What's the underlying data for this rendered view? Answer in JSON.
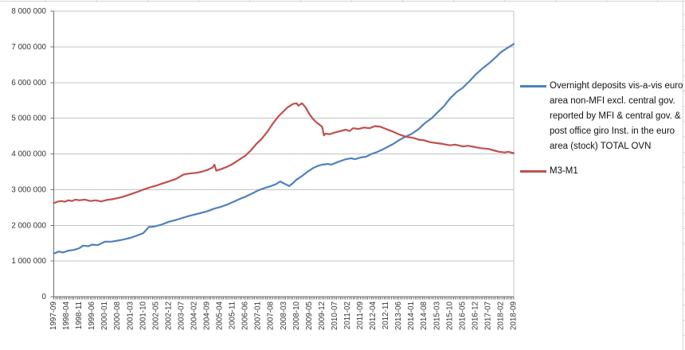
{
  "sheet": {
    "background_color": "#ffffff",
    "gridline_color": "#d4d4d4"
  },
  "chart": {
    "title": "",
    "colors": {
      "series_blue": "#4F81BD",
      "series_red": "#C0504D",
      "gridline": "#c3c3c3",
      "axis": "#6f6f6f",
      "tick_label": "#353535"
    },
    "y_axis": {
      "min": 0,
      "max": 8000000,
      "step": 1000000,
      "tick_labels": [
        "0",
        "1 000 000",
        "2 000 000",
        "3 000 000",
        "4 000 000",
        "5 000 000",
        "6 000 000",
        "7 000 000",
        "8 000 000"
      ]
    },
    "x_axis": {
      "start": "1997-09",
      "end": "2018-09",
      "label_every_months": 7,
      "tick_labels": [
        "1997-09",
        "1998-04",
        "1998-11",
        "1999-06",
        "2000-01",
        "2000-08",
        "2001-03",
        "2001-10",
        "2002-05",
        "2002-12",
        "2003-07",
        "2004-02",
        "2004-09",
        "2005-04",
        "2005-11",
        "2006-06",
        "2007-01",
        "2007-08",
        "2008-03",
        "2008-10",
        "2009-05",
        "2009-12",
        "2010-07",
        "2011-02",
        "2011-09",
        "2012-04",
        "2012-11",
        "2013-06",
        "2014-01",
        "2014-08",
        "2015-03",
        "2015-10",
        "2016-05",
        "2016-12",
        "2017-07",
        "2018-02",
        "2018-09"
      ]
    },
    "legend": {
      "position": "right",
      "entries": [
        {
          "id": "ovn",
          "color": "#4F81BD",
          "label_lines": [
            "Overnight deposits vis-a-vis euro",
            "area non-MFI excl. central gov.",
            "reported by MFI & central gov. &",
            "post office giro Inst.  in the euro",
            "area (stock) TOTAL OVN"
          ]
        },
        {
          "id": "m3m1",
          "color": "#C0504D",
          "label_lines": [
            "M3-M1"
          ]
        }
      ]
    }
  },
  "chart_data": {
    "type": "line",
    "title": "",
    "xlabel": "",
    "ylabel": "",
    "ylim": [
      0,
      8000000
    ],
    "x_range": [
      "1997-09",
      "2018-09"
    ],
    "x_unit": "month",
    "grid": "horizontal",
    "legend_position": "right",
    "series": [
      {
        "id": "ovn",
        "name": "Overnight deposits vis-a-vis euro area non-MFI excl. central gov. reported by MFI & central gov. & post office giro Inst. in the euro area (stock) TOTAL OVN",
        "color": "#4F81BD",
        "points": [
          [
            "1997-09",
            1210000
          ],
          [
            "1997-12",
            1265000
          ],
          [
            "1998-02",
            1240000
          ],
          [
            "1998-05",
            1290000
          ],
          [
            "1998-08",
            1310000
          ],
          [
            "1998-11",
            1360000
          ],
          [
            "1999-01",
            1430000
          ],
          [
            "1999-04",
            1415000
          ],
          [
            "1999-06",
            1460000
          ],
          [
            "1999-09",
            1445000
          ],
          [
            "2000-01",
            1540000
          ],
          [
            "2000-05",
            1545000
          ],
          [
            "2000-08",
            1570000
          ],
          [
            "2000-11",
            1600000
          ],
          [
            "2001-03",
            1650000
          ],
          [
            "2001-07",
            1720000
          ],
          [
            "2001-10",
            1780000
          ],
          [
            "2002-01",
            1950000
          ],
          [
            "2002-04",
            1965000
          ],
          [
            "2002-08",
            2020000
          ],
          [
            "2002-12",
            2100000
          ],
          [
            "2003-04",
            2150000
          ],
          [
            "2003-07",
            2200000
          ],
          [
            "2003-11",
            2260000
          ],
          [
            "2004-02",
            2300000
          ],
          [
            "2004-06",
            2350000
          ],
          [
            "2004-09",
            2390000
          ],
          [
            "2005-01",
            2470000
          ],
          [
            "2005-04",
            2510000
          ],
          [
            "2005-08",
            2580000
          ],
          [
            "2005-11",
            2650000
          ],
          [
            "2006-03",
            2740000
          ],
          [
            "2006-06",
            2800000
          ],
          [
            "2006-10",
            2900000
          ],
          [
            "2007-01",
            2980000
          ],
          [
            "2007-05",
            3050000
          ],
          [
            "2007-08",
            3100000
          ],
          [
            "2007-11",
            3160000
          ],
          [
            "2008-01",
            3230000
          ],
          [
            "2008-04",
            3150000
          ],
          [
            "2008-06",
            3100000
          ],
          [
            "2008-08",
            3180000
          ],
          [
            "2008-10",
            3280000
          ],
          [
            "2009-01",
            3380000
          ],
          [
            "2009-04",
            3500000
          ],
          [
            "2009-07",
            3600000
          ],
          [
            "2009-10",
            3670000
          ],
          [
            "2009-12",
            3700000
          ],
          [
            "2010-03",
            3720000
          ],
          [
            "2010-05",
            3700000
          ],
          [
            "2010-07",
            3740000
          ],
          [
            "2010-10",
            3800000
          ],
          [
            "2011-01",
            3850000
          ],
          [
            "2011-04",
            3880000
          ],
          [
            "2011-06",
            3850000
          ],
          [
            "2011-09",
            3900000
          ],
          [
            "2011-12",
            3920000
          ],
          [
            "2012-03",
            4000000
          ],
          [
            "2012-06",
            4050000
          ],
          [
            "2012-09",
            4120000
          ],
          [
            "2012-12",
            4200000
          ],
          [
            "2013-03",
            4280000
          ],
          [
            "2013-06",
            4380000
          ],
          [
            "2013-10",
            4490000
          ],
          [
            "2014-01",
            4560000
          ],
          [
            "2014-05",
            4700000
          ],
          [
            "2014-08",
            4850000
          ],
          [
            "2014-12",
            5000000
          ],
          [
            "2015-04",
            5200000
          ],
          [
            "2015-07",
            5350000
          ],
          [
            "2015-10",
            5550000
          ],
          [
            "2016-02",
            5750000
          ],
          [
            "2016-05",
            5850000
          ],
          [
            "2016-09",
            6050000
          ],
          [
            "2016-12",
            6220000
          ],
          [
            "2017-04",
            6400000
          ],
          [
            "2017-07",
            6520000
          ],
          [
            "2017-11",
            6700000
          ],
          [
            "2018-02",
            6850000
          ],
          [
            "2018-05",
            6950000
          ],
          [
            "2018-09",
            7080000
          ]
        ]
      },
      {
        "id": "m3m1",
        "name": "M3-M1",
        "color": "#C0504D",
        "points": [
          [
            "1997-09",
            2620000
          ],
          [
            "1997-11",
            2660000
          ],
          [
            "1998-01",
            2680000
          ],
          [
            "1998-03",
            2660000
          ],
          [
            "1998-05",
            2700000
          ],
          [
            "1998-07",
            2680000
          ],
          [
            "1998-09",
            2720000
          ],
          [
            "1998-11",
            2700000
          ],
          [
            "1999-02",
            2720000
          ],
          [
            "1999-05",
            2680000
          ],
          [
            "1999-08",
            2700000
          ],
          [
            "1999-11",
            2670000
          ],
          [
            "2000-02",
            2710000
          ],
          [
            "2000-05",
            2730000
          ],
          [
            "2000-08",
            2760000
          ],
          [
            "2000-11",
            2800000
          ],
          [
            "2001-03",
            2870000
          ],
          [
            "2001-07",
            2940000
          ],
          [
            "2001-10",
            3000000
          ],
          [
            "2002-01",
            3050000
          ],
          [
            "2002-05",
            3110000
          ],
          [
            "2002-09",
            3180000
          ],
          [
            "2002-12",
            3230000
          ],
          [
            "2003-04",
            3300000
          ],
          [
            "2003-08",
            3420000
          ],
          [
            "2003-11",
            3450000
          ],
          [
            "2004-03",
            3470000
          ],
          [
            "2004-06",
            3500000
          ],
          [
            "2004-09",
            3550000
          ],
          [
            "2004-12",
            3620000
          ],
          [
            "2005-01",
            3700000
          ],
          [
            "2005-02",
            3530000
          ],
          [
            "2005-05",
            3580000
          ],
          [
            "2005-08",
            3640000
          ],
          [
            "2005-11",
            3720000
          ],
          [
            "2006-02",
            3820000
          ],
          [
            "2006-06",
            3950000
          ],
          [
            "2006-09",
            4100000
          ],
          [
            "2006-12",
            4280000
          ],
          [
            "2007-03",
            4430000
          ],
          [
            "2007-06",
            4620000
          ],
          [
            "2007-09",
            4850000
          ],
          [
            "2007-12",
            5050000
          ],
          [
            "2008-02",
            5150000
          ],
          [
            "2008-05",
            5300000
          ],
          [
            "2008-08",
            5400000
          ],
          [
            "2008-10",
            5420000
          ],
          [
            "2008-11",
            5350000
          ],
          [
            "2009-01",
            5420000
          ],
          [
            "2009-03",
            5300000
          ],
          [
            "2009-05",
            5120000
          ],
          [
            "2009-07",
            4980000
          ],
          [
            "2009-09",
            4880000
          ],
          [
            "2009-12",
            4760000
          ],
          [
            "2010-01",
            4520000
          ],
          [
            "2010-02",
            4570000
          ],
          [
            "2010-04",
            4550000
          ],
          [
            "2010-07",
            4600000
          ],
          [
            "2010-10",
            4640000
          ],
          [
            "2011-01",
            4680000
          ],
          [
            "2011-03",
            4640000
          ],
          [
            "2011-05",
            4720000
          ],
          [
            "2011-08",
            4700000
          ],
          [
            "2011-11",
            4740000
          ],
          [
            "2012-02",
            4720000
          ],
          [
            "2012-05",
            4780000
          ],
          [
            "2012-08",
            4760000
          ],
          [
            "2012-11",
            4700000
          ],
          [
            "2013-02",
            4640000
          ],
          [
            "2013-06",
            4550000
          ],
          [
            "2013-10",
            4480000
          ],
          [
            "2014-02",
            4450000
          ],
          [
            "2014-05",
            4400000
          ],
          [
            "2014-08",
            4380000
          ],
          [
            "2014-11",
            4330000
          ],
          [
            "2015-03",
            4300000
          ],
          [
            "2015-06",
            4280000
          ],
          [
            "2015-10",
            4240000
          ],
          [
            "2016-01",
            4260000
          ],
          [
            "2016-05",
            4210000
          ],
          [
            "2016-08",
            4230000
          ],
          [
            "2016-12",
            4190000
          ],
          [
            "2017-03",
            4160000
          ],
          [
            "2017-07",
            4140000
          ],
          [
            "2017-10",
            4100000
          ],
          [
            "2018-01",
            4060000
          ],
          [
            "2018-04",
            4040000
          ],
          [
            "2018-06",
            4060000
          ],
          [
            "2018-09",
            4020000
          ]
        ]
      }
    ]
  }
}
